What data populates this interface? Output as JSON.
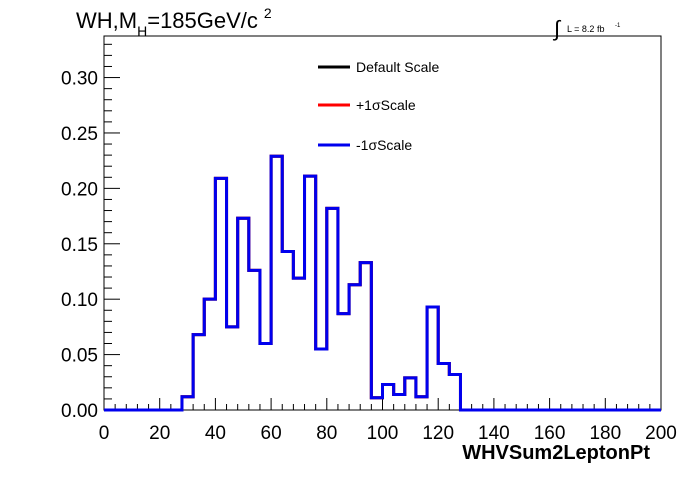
{
  "title": {
    "main": "WH,M",
    "subscript": "H",
    "value": "=185GeV/c",
    "superscript": "2"
  },
  "luminosity": {
    "integral_symbol": "∫",
    "text": "L = 8.2 fb",
    "exponent": "-1"
  },
  "chart_data": {
    "type": "line",
    "style": "step-histogram",
    "xlabel": "WHVSum2LeptonPt",
    "ylabel": "",
    "xlim": [
      0,
      200
    ],
    "ylim": [
      0,
      0.3375
    ],
    "x_ticks": [
      0,
      20,
      40,
      60,
      80,
      100,
      120,
      140,
      160,
      180,
      200
    ],
    "x_tick_labels": [
      "0",
      "20",
      "40",
      "60",
      "80",
      "100",
      "120",
      "140",
      "160",
      "180",
      "200"
    ],
    "y_ticks": [
      0.0,
      0.05,
      0.1,
      0.15,
      0.2,
      0.25,
      0.3
    ],
    "y_tick_labels": [
      "0.00",
      "0.05",
      "0.10",
      "0.15",
      "0.20",
      "0.25",
      "0.30"
    ],
    "grid": false,
    "legend_position": "top-center",
    "bin_edges": [
      0,
      4,
      8,
      12,
      16,
      20,
      24,
      28,
      32,
      36,
      40,
      44,
      48,
      52,
      56,
      60,
      64,
      68,
      72,
      76,
      80,
      84,
      88,
      92,
      96,
      100,
      104,
      108,
      112,
      116,
      120,
      124,
      128,
      132,
      136,
      140,
      144,
      148,
      152,
      156,
      160,
      164,
      168,
      172,
      176,
      180,
      184,
      188,
      192,
      196,
      200
    ],
    "series": [
      {
        "name": "Default Scale",
        "color": "#000000",
        "values": [
          0,
          0,
          0,
          0,
          0,
          0,
          0,
          0.012,
          0.068,
          0.1,
          0.209,
          0.075,
          0.173,
          0.126,
          0.06,
          0.229,
          0.143,
          0.119,
          0.211,
          0.055,
          0.182,
          0.087,
          0.113,
          0.133,
          0.011,
          0.023,
          0.014,
          0.029,
          0.012,
          0.093,
          0.042,
          0.032,
          0,
          0,
          0,
          0,
          0,
          0,
          0,
          0,
          0,
          0,
          0,
          0,
          0,
          0,
          0,
          0,
          0,
          0
        ]
      },
      {
        "name": "+1σScale",
        "color": "#ff0000",
        "values": [
          0,
          0,
          0,
          0,
          0,
          0,
          0,
          0.012,
          0.068,
          0.1,
          0.209,
          0.075,
          0.173,
          0.126,
          0.06,
          0.229,
          0.143,
          0.119,
          0.211,
          0.055,
          0.182,
          0.087,
          0.113,
          0.133,
          0.011,
          0.023,
          0.014,
          0.029,
          0.012,
          0.093,
          0.042,
          0.032,
          0,
          0,
          0,
          0,
          0,
          0,
          0,
          0,
          0,
          0,
          0,
          0,
          0,
          0,
          0,
          0,
          0,
          0
        ]
      },
      {
        "name": "-1σScale",
        "color": "#0000ee",
        "values": [
          0,
          0,
          0,
          0,
          0,
          0,
          0,
          0.012,
          0.068,
          0.1,
          0.209,
          0.075,
          0.173,
          0.126,
          0.06,
          0.229,
          0.143,
          0.119,
          0.211,
          0.055,
          0.182,
          0.087,
          0.113,
          0.133,
          0.011,
          0.023,
          0.014,
          0.029,
          0.012,
          0.093,
          0.042,
          0.032,
          0,
          0,
          0,
          0,
          0,
          0,
          0,
          0,
          0,
          0,
          0,
          0,
          0,
          0,
          0,
          0,
          0,
          0
        ]
      }
    ]
  }
}
